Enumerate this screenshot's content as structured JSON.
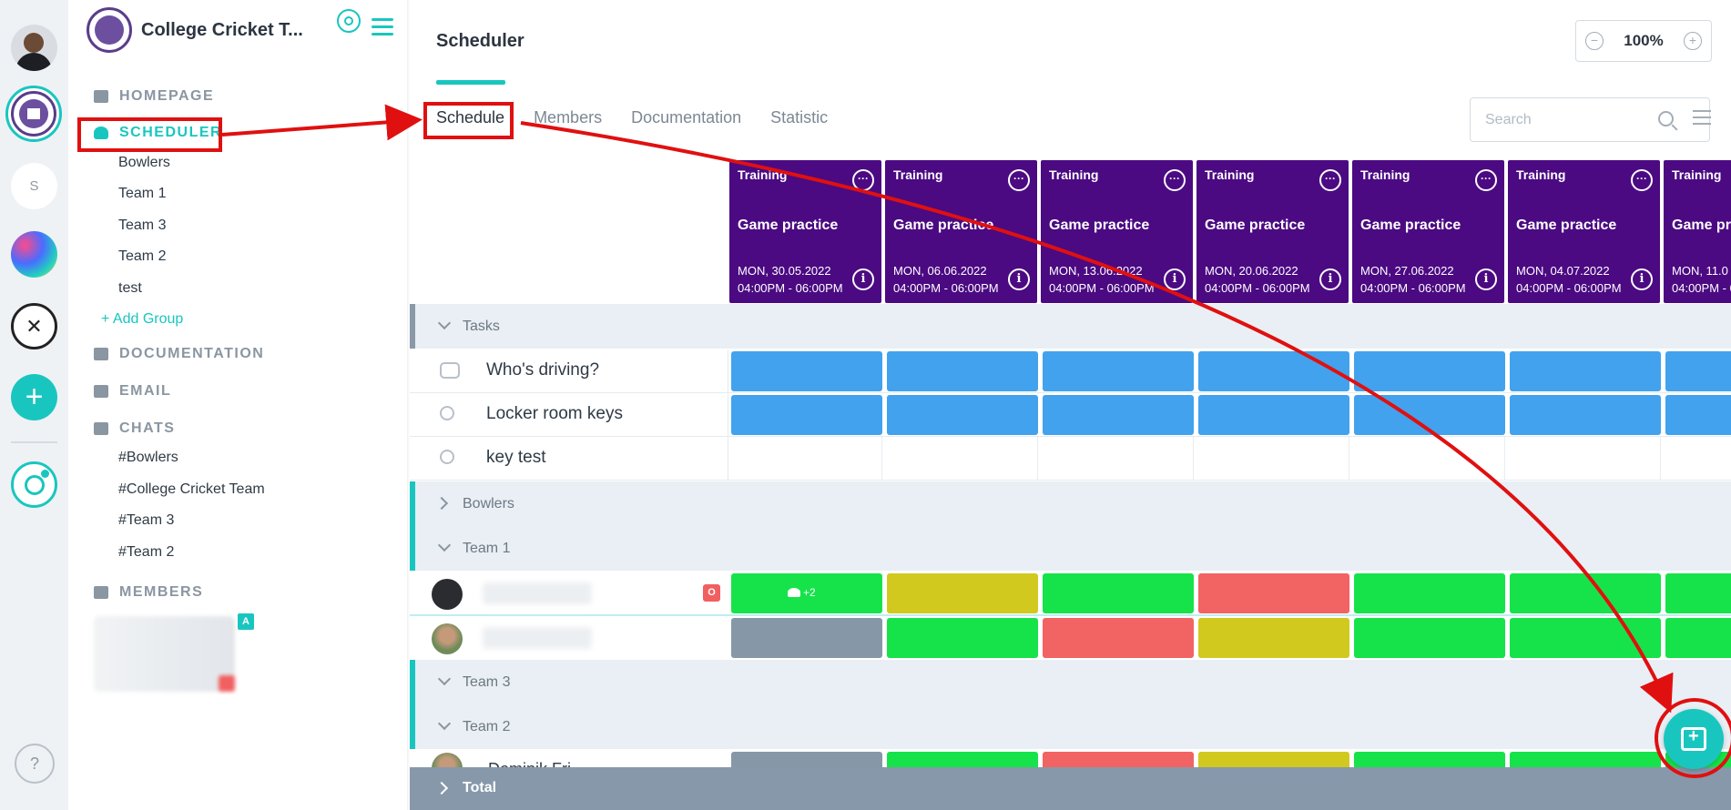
{
  "sidebar": {
    "title": "College Cricket T...",
    "sections": {
      "homepage": "HOMEPAGE",
      "scheduler": "SCHEDULER",
      "documentation": "DOCUMENTATION",
      "email": "EMAIL",
      "chats": "CHATS",
      "members": "MEMBERS"
    },
    "groups": [
      "Bowlers",
      "Team 1",
      "Team 3",
      "Team 2",
      "test"
    ],
    "add_group": "+ Add Group",
    "chats": [
      "#Bowlers",
      "#College Cricket Team",
      "#Team 3",
      "#Team 2"
    ],
    "member_badge": "A"
  },
  "rail": {
    "s_label": "S",
    "add_label": "+",
    "help_label": "?"
  },
  "header": {
    "title": "Scheduler",
    "zoom": "100%",
    "zoom_minus": "−",
    "zoom_plus": "+"
  },
  "tabs": [
    "Schedule",
    "Members",
    "Documentation",
    "Statistic"
  ],
  "search": {
    "placeholder": "Search"
  },
  "events": [
    {
      "type": "Training",
      "name": "Game practice",
      "date": "MON, 30.05.2022",
      "time": "04:00PM - 06:00PM"
    },
    {
      "type": "Training",
      "name": "Game practice",
      "date": "MON, 06.06.2022",
      "time": "04:00PM - 06:00PM"
    },
    {
      "type": "Training",
      "name": "Game practice",
      "date": "MON, 13.06.2022",
      "time": "04:00PM - 06:00PM"
    },
    {
      "type": "Training",
      "name": "Game practice",
      "date": "MON, 20.06.2022",
      "time": "04:00PM - 06:00PM"
    },
    {
      "type": "Training",
      "name": "Game practice",
      "date": "MON, 27.06.2022",
      "time": "04:00PM - 06:00PM"
    },
    {
      "type": "Training",
      "name": "Game practice",
      "date": "MON, 04.07.2022",
      "time": "04:00PM - 06:00PM"
    },
    {
      "type": "Training",
      "name": "Game pr",
      "date": "MON, 11.0",
      "time": "04:00PM - 0"
    }
  ],
  "event_more": "···",
  "event_info": "i",
  "groups": {
    "tasks": "Tasks",
    "bowlers": "Bowlers",
    "team1": "Team 1",
    "team3": "Team 3",
    "team2": "Team 2",
    "total": "Total"
  },
  "tasks": [
    {
      "label": "Who's driving?",
      "icon": "car-icon"
    },
    {
      "label": "Locker room keys",
      "icon": "key-icon"
    },
    {
      "label": "key test",
      "icon": "key-icon"
    }
  ],
  "members": {
    "member1_badge": "O",
    "member1_extra": "+2",
    "member3_partial": "Dominik Fri"
  },
  "colors": {
    "task_blue": "#42a2ee",
    "green": "#16e34a",
    "yellow": "#d2c91f",
    "red": "#f26363",
    "gray": "#8697a8",
    "event": "#4b0a82",
    "teal": "#19c6bf",
    "annotation": "#e01010"
  },
  "grid": {
    "task_rows": [
      [
        "task_blue",
        "task_blue",
        "task_blue",
        "task_blue",
        "task_blue",
        "task_blue",
        "task_blue"
      ],
      [
        "task_blue",
        "task_blue",
        "task_blue",
        "task_blue",
        "task_blue",
        "task_blue",
        "task_blue"
      ],
      [
        "empty",
        "empty",
        "empty",
        "empty",
        "empty",
        "empty",
        "empty"
      ]
    ],
    "team1_rows": [
      [
        "green",
        "yellow",
        "green",
        "red",
        "green",
        "green",
        "green"
      ],
      [
        "gray",
        "green",
        "red",
        "yellow",
        "green",
        "green",
        "green"
      ]
    ],
    "team2_rows": [
      [
        "gray",
        "green",
        "red",
        "yellow",
        "green",
        "green",
        "green"
      ]
    ]
  }
}
